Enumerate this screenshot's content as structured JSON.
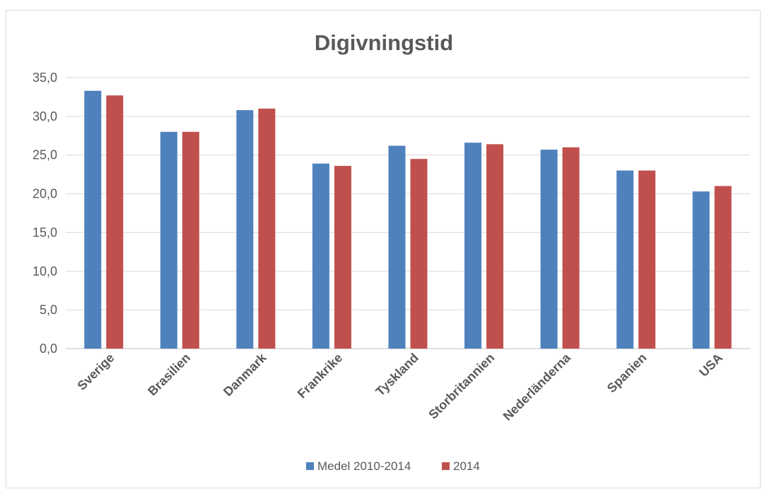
{
  "chart_data": {
    "type": "bar",
    "title": "Digivningstid",
    "xlabel": "",
    "ylabel": "",
    "categories": [
      "Sverige",
      "Brasilien",
      "Danmark",
      "Frankrike",
      "Tyskland",
      "Storbritannien",
      "Nederländerna",
      "Spanien",
      "USA"
    ],
    "series": [
      {
        "name": "Medel 2010-2014",
        "color": "#4f81bd",
        "values": [
          33.3,
          28.0,
          30.8,
          23.9,
          26.2,
          26.6,
          25.7,
          23.0,
          20.3
        ]
      },
      {
        "name": "2014",
        "color": "#c0504d",
        "values": [
          32.7,
          28.0,
          31.0,
          23.6,
          24.5,
          26.4,
          26.0,
          23.0,
          21.0
        ]
      }
    ],
    "ylim": [
      0,
      35
    ],
    "yticks": [
      "0,0",
      "5,0",
      "10,0",
      "15,0",
      "20,0",
      "25,0",
      "30,0",
      "35,0"
    ],
    "grid": true,
    "legend_position": "bottom"
  }
}
